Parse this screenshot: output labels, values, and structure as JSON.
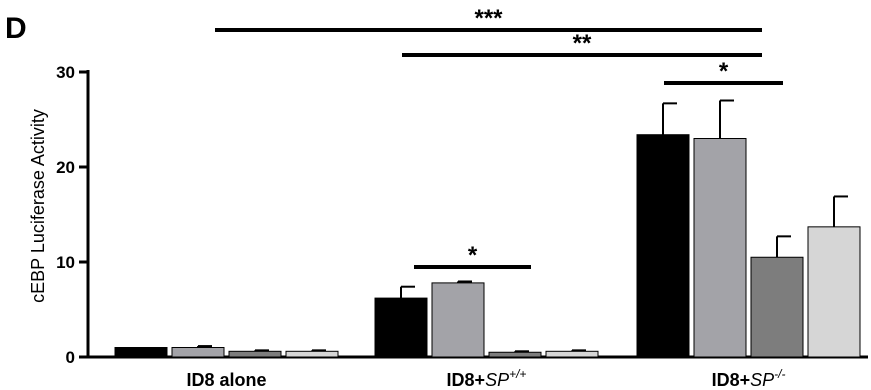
{
  "panel_label": "D",
  "chart_data": {
    "type": "bar",
    "title": "",
    "xlabel": "",
    "ylabel": "cEBP Luciferase Activity",
    "ylim": [
      0,
      30
    ],
    "yticks": [
      0,
      10,
      20,
      30
    ],
    "grid": false,
    "categories": [
      {
        "prefix": "ID8 alone",
        "italic": "",
        "sup": ""
      },
      {
        "prefix": "ID8+",
        "italic": "SP",
        "sup": "+/+"
      },
      {
        "prefix": "ID8+",
        "italic": "SP",
        "sup": "-/-"
      }
    ],
    "series": [
      {
        "color": "#000000",
        "values": [
          1.0,
          6.2,
          23.4
        ],
        "errors": [
          0.0,
          1.2,
          3.3
        ]
      },
      {
        "color": "#a3a3a8",
        "values": [
          1.0,
          7.8,
          23.0
        ],
        "errors": [
          0.15,
          0.15,
          4.0
        ]
      },
      {
        "color": "#7d7d7d",
        "values": [
          0.6,
          0.5,
          10.5
        ],
        "errors": [
          0.1,
          0.1,
          2.2
        ]
      },
      {
        "color": "#d6d6d6",
        "values": [
          0.6,
          0.6,
          13.7
        ],
        "errors": [
          0.1,
          0.1,
          3.2
        ]
      }
    ],
    "significance": [
      {
        "label": "***",
        "from": [
          0,
          0
        ],
        "to": [
          2,
          2
        ]
      },
      {
        "label": "**",
        "from": [
          1,
          0
        ],
        "to": [
          2,
          2
        ]
      },
      {
        "label": "*",
        "from": [
          2,
          0
        ],
        "to": [
          2,
          2
        ]
      },
      {
        "label": "*",
        "from": [
          1,
          0
        ],
        "to": [
          1,
          2
        ]
      }
    ]
  }
}
